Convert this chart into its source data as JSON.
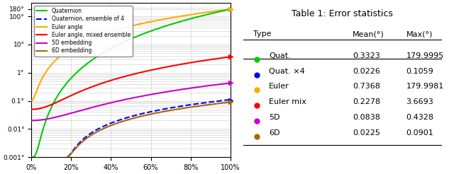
{
  "title": "Table 1: Error statistics",
  "table_headers": [
    "Type",
    "Mean(°)",
    "Max(°)"
  ],
  "table_rows": [
    {
      "label": "Quat.",
      "color": "#00cc00",
      "mean": "0.3323",
      "max": "179.9995"
    },
    {
      "label": "Quat. ×4",
      "color": "#0000ff",
      "mean": "0.0226",
      "max": "0.1059"
    },
    {
      "label": "Euler",
      "color": "#ffaa00",
      "mean": "0.7368",
      "max": "179.9981"
    },
    {
      "label": "Euler mix",
      "color": "#ff0000",
      "mean": "0.2278",
      "max": "3.6693"
    },
    {
      "label": "5D",
      "color": "#cc00cc",
      "mean": "0.0838",
      "max": "0.4328"
    },
    {
      "label": "6D",
      "color": "#aa6600",
      "mean": "0.0225",
      "max": "0.0901"
    }
  ],
  "legend_entries": [
    {
      "label": "Quaternion",
      "color": "#00cc00",
      "linestyle": "solid"
    },
    {
      "label": "Quaternion, ensemble of 4",
      "color": "#0000ff",
      "linestyle": "dashed"
    },
    {
      "label": "Euler angle",
      "color": "#ffaa00",
      "linestyle": "solid"
    },
    {
      "label": "Euler angle, mixed ensemble",
      "color": "#ff0000",
      "linestyle": "solid"
    },
    {
      "label": "5D embedding",
      "color": "#cc00cc",
      "linestyle": "solid"
    },
    {
      "label": "6D embedding",
      "color": "#aa6600",
      "linestyle": "solid"
    }
  ],
  "ylim_log": [
    0.001,
    300
  ],
  "xlim": [
    0,
    1
  ],
  "ytick_vals": [
    0.001,
    0.01,
    0.1,
    1,
    10,
    100,
    180
  ],
  "ytick_labels": [
    "0.001°",
    "0.01°",
    "0.1°",
    "1°",
    "10°",
    "100°",
    "180°"
  ],
  "xtick_vals": [
    0,
    0.2,
    0.4,
    0.6,
    0.8,
    1.0
  ],
  "xtick_labels": [
    "0%",
    "20%",
    "40%",
    "60%",
    "80%",
    "100%"
  ],
  "colors": {
    "quat": "#00cc00",
    "quat4": "#0000ff",
    "euler": "#ffaa00",
    "euler_mix": "#ff0000",
    "5d": "#cc00cc",
    "6d": "#aa6600"
  },
  "dot_colors": [
    "#00cc00",
    "#0000ff",
    "#ffaa00",
    "#ff0000",
    "#cc00cc",
    "#aa6600"
  ]
}
